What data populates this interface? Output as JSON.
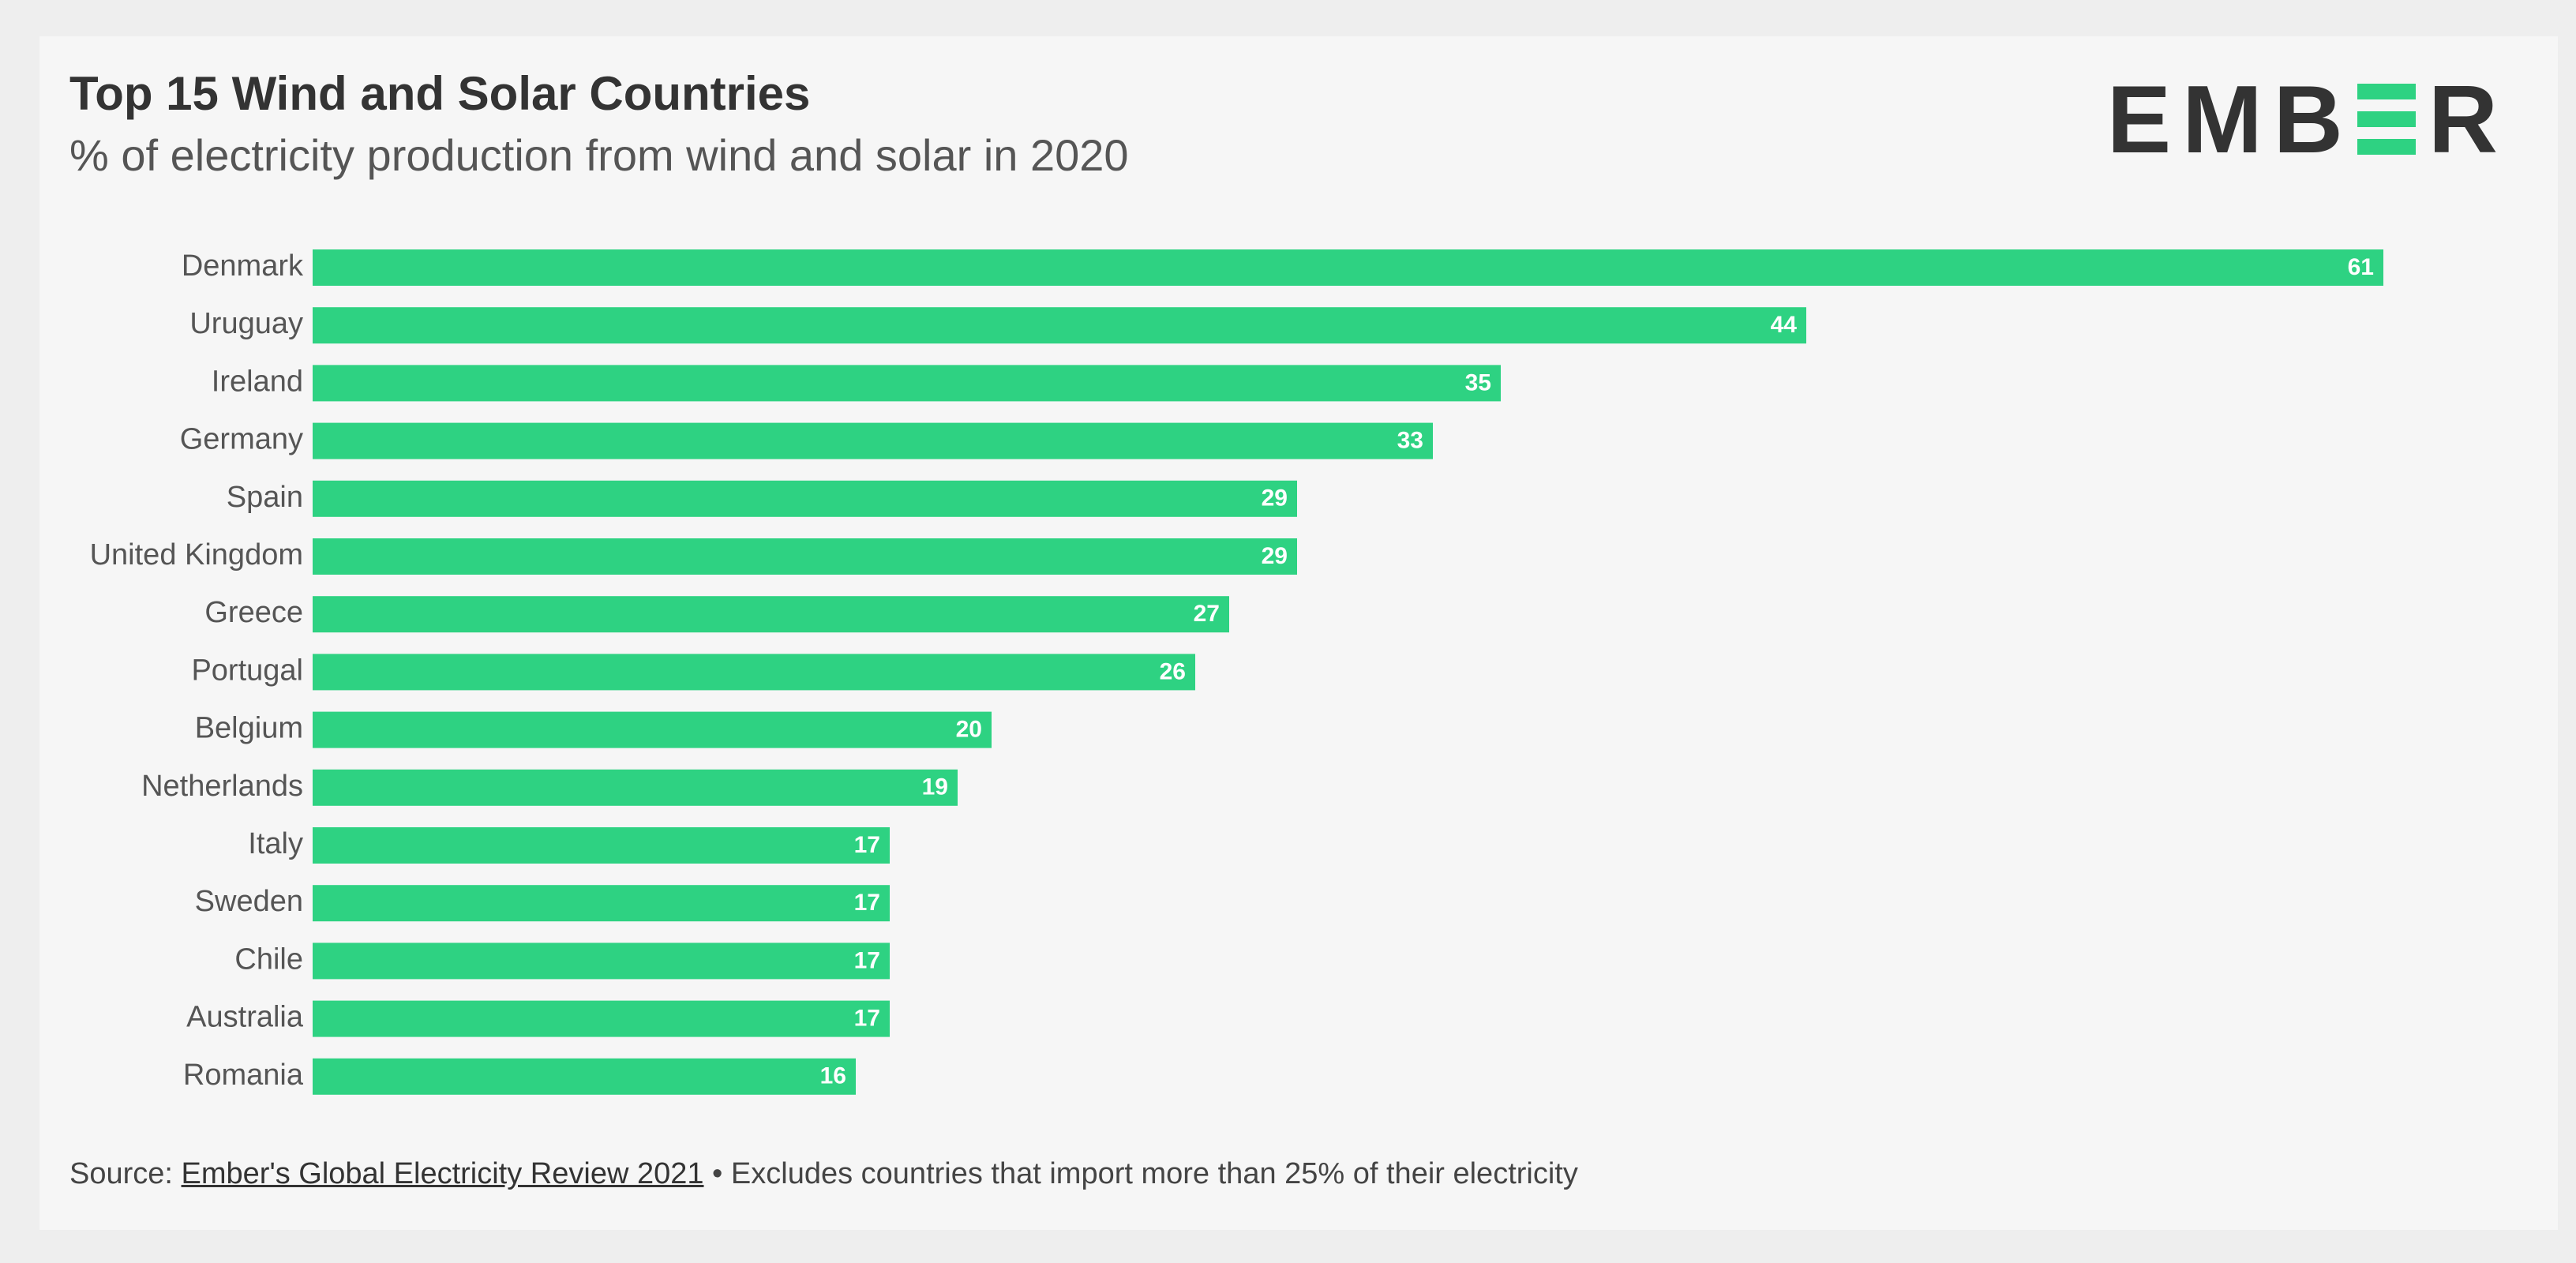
{
  "header": {
    "title": "Top 15 Wind and Solar Countries",
    "subtitle": "% of electricity production from wind and solar in 2020"
  },
  "logo": {
    "prefix": "EMB",
    "suffix": "R",
    "accent_color": "#2ed282"
  },
  "footer": {
    "source_label": "Source: ",
    "source_link": "Ember's Global Electricity Review 2021",
    "note": " • Excludes countries that import more than 25% of their electricity"
  },
  "chart_data": {
    "type": "bar",
    "orientation": "horizontal",
    "categories": [
      "Denmark",
      "Uruguay",
      "Ireland",
      "Germany",
      "Spain",
      "United Kingdom",
      "Greece",
      "Portugal",
      "Belgium",
      "Netherlands",
      "Italy",
      "Sweden",
      "Chile",
      "Australia",
      "Romania"
    ],
    "values": [
      61,
      44,
      35,
      33,
      29,
      29,
      27,
      26,
      20,
      19,
      17,
      17,
      17,
      17,
      16
    ],
    "title": "Top 15 Wind and Solar Countries",
    "subtitle": "% of electricity production from wind and solar in 2020",
    "xlim": [
      0,
      61
    ],
    "grid": false,
    "legend": "none",
    "bar_color": "#2ed282"
  }
}
